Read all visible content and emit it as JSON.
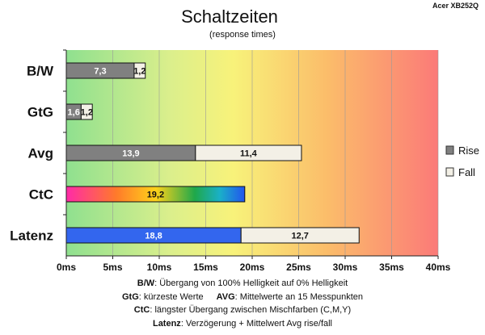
{
  "header": {
    "title": "Schaltzeiten",
    "subtitle": "(response times)",
    "device": "Acer XB252Q"
  },
  "chart_data": {
    "type": "bar",
    "orientation": "horizontal",
    "stacked": true,
    "categories": [
      "B/W",
      "GtG",
      "Avg",
      "CtC",
      "Latenz"
    ],
    "series": [
      {
        "name": "Rise",
        "values": [
          7.3,
          1.6,
          13.9,
          19.2,
          18.8
        ]
      },
      {
        "name": "Fall",
        "values": [
          1.2,
          1.2,
          11.4,
          null,
          12.7
        ]
      }
    ],
    "value_labels": {
      "Rise": [
        "7,3",
        "1,6",
        "13,9",
        "19,2",
        "18,8"
      ],
      "Fall": [
        "1,2",
        "1,2",
        "11,4",
        "",
        "12,7"
      ]
    },
    "bar_fills": {
      "Rise": [
        "#808080",
        "#808080",
        "#808080",
        "gradient",
        "#3366ee"
      ],
      "Fall": [
        "#f3f0e6",
        "#f3f0e6",
        "#f3f0e6",
        "",
        "#f3f0e6"
      ]
    },
    "xlim": [
      0,
      40
    ],
    "xticks": [
      "0ms",
      "5ms",
      "10ms",
      "15ms",
      "20ms",
      "25ms",
      "30ms",
      "35ms",
      "40ms"
    ],
    "grid": true,
    "background": "green-yellow-red gradient",
    "legend": {
      "position": "right",
      "items": [
        {
          "label": "Rise",
          "color": "#808080"
        },
        {
          "label": "Fall",
          "color": "#f3f0e6"
        }
      ]
    }
  },
  "notes": {
    "line1": {
      "key": "B/W",
      "text": ":  Übergang von 100% Helligkeit auf 0% Helligkeit"
    },
    "line2a": {
      "key": "GtG",
      "text": ": kürzeste  Werte"
    },
    "line2b": {
      "key": "AVG",
      "text": ": Mittelwerte  an 15 Messpunkten"
    },
    "line3": {
      "key": "CtC",
      "text": ": längster Übergang  zwischen Mischfarben  (C,M,Y)"
    },
    "line4": {
      "key": "Latenz",
      "text": ": Verzögerung  + Mittelwert  Avg rise/fall"
    }
  }
}
